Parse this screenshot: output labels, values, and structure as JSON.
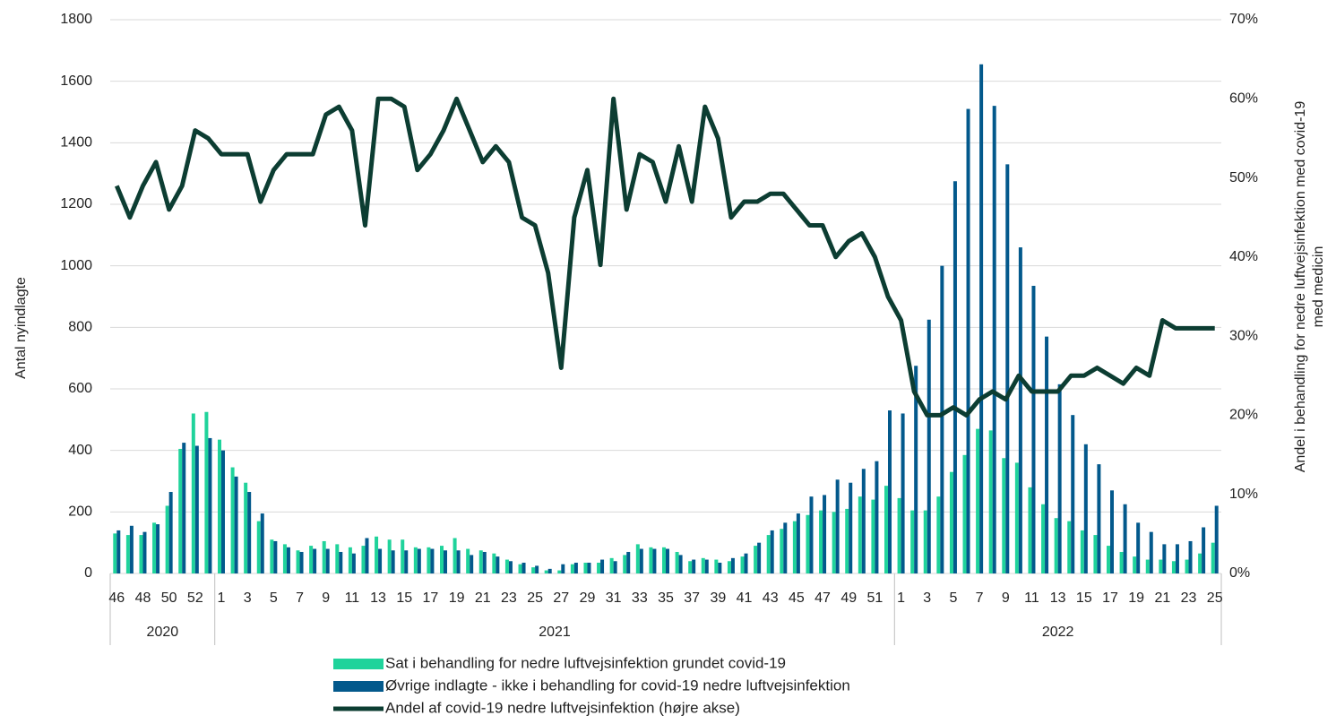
{
  "chart_data": {
    "type": "bar_line",
    "y_label": "Antal nyindlagte",
    "y2_label": [
      "Andel i behandling for nedre luftvejsinfektion med covid-19",
      "med medicin"
    ],
    "groups": [
      {
        "label": "2020",
        "categories": [
          "46",
          null,
          "48",
          null,
          "50",
          null,
          "52",
          null
        ]
      },
      {
        "label": "2021",
        "categories": [
          "1",
          null,
          "3",
          null,
          "5",
          null,
          "7",
          null,
          "9",
          null,
          "11",
          null,
          "13",
          null,
          "15",
          null,
          "17",
          null,
          "19",
          null,
          "21",
          null,
          "23",
          null,
          "25",
          null,
          "27",
          null,
          "29",
          null,
          "31",
          null,
          "33",
          null,
          "35",
          null,
          "37",
          null,
          "39",
          null,
          "41",
          null,
          "43",
          null,
          "45",
          null,
          "47",
          null,
          "49",
          null,
          "51",
          null
        ]
      },
      {
        "label": "2022",
        "categories": [
          "1",
          null,
          "3",
          null,
          "5",
          null,
          "7",
          null,
          "9",
          null,
          "11",
          null,
          "13",
          null,
          "15",
          null,
          "17",
          null,
          "19",
          null,
          "21",
          null,
          "23",
          null,
          "25"
        ]
      }
    ],
    "ylim": [
      0,
      1800
    ],
    "yticks": [
      0,
      200,
      400,
      600,
      800,
      1000,
      1200,
      1400,
      1600,
      1800
    ],
    "y2lim": [
      0,
      70
    ],
    "y2ticks": [
      {
        "value": 0,
        "label": "0%"
      },
      {
        "value": 10,
        "label": "10%"
      },
      {
        "value": 20,
        "label": "20%"
      },
      {
        "value": 30,
        "label": "30%"
      },
      {
        "value": 40,
        "label": "40%"
      },
      {
        "value": 50,
        "label": "50%"
      },
      {
        "value": 60,
        "label": "60%"
      },
      {
        "value": 70,
        "label": "70%"
      }
    ],
    "grid": true,
    "series": [
      {
        "name": "Sat i behandling for nedre luftvejsinfektion grundet covid-19",
        "kind": "bar",
        "color": "#1fd39b",
        "values": [
          130,
          125,
          125,
          165,
          220,
          405,
          520,
          525,
          435,
          345,
          295,
          170,
          110,
          95,
          75,
          90,
          105,
          95,
          85,
          90,
          120,
          110,
          110,
          85,
          85,
          90,
          115,
          80,
          75,
          65,
          45,
          30,
          20,
          10,
          10,
          30,
          35,
          35,
          50,
          60,
          95,
          85,
          85,
          70,
          40,
          50,
          45,
          40,
          55,
          90,
          125,
          145,
          170,
          190,
          205,
          200,
          210,
          250,
          240,
          285,
          245,
          205,
          205,
          250,
          330,
          385,
          470,
          465,
          375,
          360,
          280,
          225,
          180,
          170,
          140,
          125,
          90,
          70,
          55,
          45,
          45,
          40,
          45,
          65,
          100
        ]
      },
      {
        "name": "Øvrige indlagte - ikke i behandling for covid-19 nedre luftvejsinfektion",
        "kind": "bar",
        "color": "#03598c",
        "values": [
          140,
          155,
          135,
          160,
          265,
          425,
          415,
          440,
          400,
          315,
          265,
          195,
          105,
          85,
          70,
          80,
          80,
          70,
          65,
          115,
          80,
          75,
          75,
          80,
          80,
          75,
          75,
          60,
          70,
          55,
          40,
          35,
          25,
          15,
          30,
          35,
          35,
          45,
          40,
          70,
          80,
          80,
          80,
          60,
          45,
          45,
          35,
          50,
          65,
          100,
          140,
          165,
          195,
          250,
          255,
          305,
          295,
          340,
          365,
          530,
          520,
          675,
          825,
          1000,
          1275,
          1510,
          1655,
          1520,
          1330,
          1060,
          935,
          770,
          615,
          515,
          420,
          355,
          270,
          225,
          165,
          135,
          95,
          95,
          105,
          150,
          220
        ]
      },
      {
        "name": "Andel af covid-19 nedre luftvejsinfektion (højre akse)",
        "kind": "line",
        "axis": "y2",
        "color": "#0c3d32",
        "values": [
          49,
          45,
          49,
          52,
          46,
          49,
          56,
          55,
          53,
          53,
          53,
          47,
          51,
          53,
          53,
          53,
          58,
          59,
          56,
          44,
          60,
          60,
          59,
          51,
          53,
          56,
          60,
          56,
          52,
          54,
          52,
          45,
          44,
          38,
          26,
          45,
          51,
          39,
          60,
          46,
          53,
          52,
          47,
          54,
          47,
          59,
          55,
          45,
          47,
          47,
          48,
          48,
          46,
          44,
          44,
          40,
          42,
          43,
          40,
          35,
          32,
          23,
          20,
          20,
          21,
          20,
          22,
          23,
          22,
          25,
          23,
          23,
          23,
          25,
          25,
          26,
          25,
          24,
          26,
          25,
          32,
          31,
          31,
          31,
          31
        ]
      }
    ]
  }
}
